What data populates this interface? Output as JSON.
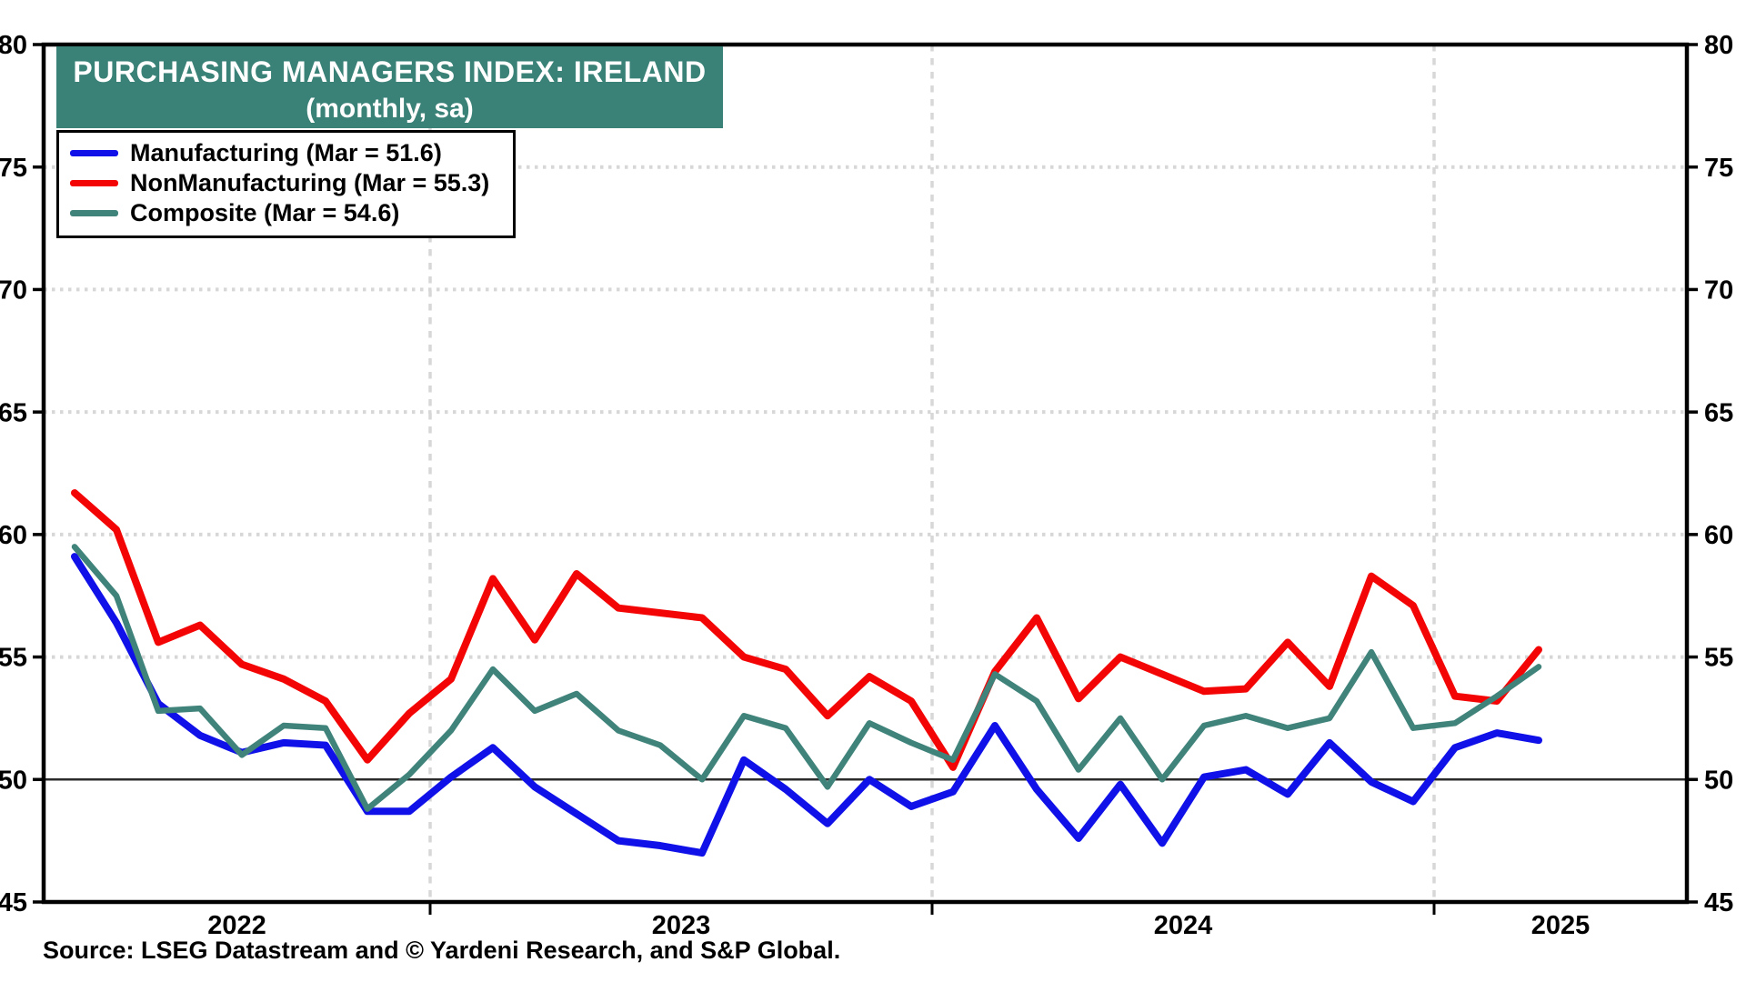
{
  "title": {
    "line1": "PURCHASING MANAGERS INDEX: IRELAND",
    "line2": "(monthly, sa)",
    "box_color": "#3A8177"
  },
  "legend": {
    "items": [
      {
        "label": "Manufacturing (Mar = 51.6)",
        "color": "#1010E8"
      },
      {
        "label": "NonManufacturing (Mar = 55.3)",
        "color": "#F40505"
      },
      {
        "label": "Composite (Mar = 54.6)",
        "color": "#3F837B"
      }
    ]
  },
  "source": "Source: LSEG Datastream and © Yardeni Research, and S&P Global.",
  "chart_data": {
    "type": "line",
    "title": "Purchasing Managers Index: Ireland (monthly, sa)",
    "xlabel": "",
    "ylabel": "",
    "ylim": [
      45,
      80
    ],
    "y_tick_step": 5,
    "y_tick_labels": [
      "45",
      "50",
      "55",
      "60",
      "65",
      "70",
      "75",
      "80"
    ],
    "grid_values_y": [
      55,
      60,
      65,
      70,
      75
    ],
    "reference_line_y": 50,
    "grid": "dotted horizontal at 5-unit steps, dashed vertical at year boundaries",
    "legend_position": "top-left",
    "x": [
      "Apr 2022",
      "May 2022",
      "Jun 2022",
      "Jul 2022",
      "Aug 2022",
      "Sep 2022",
      "Oct 2022",
      "Nov 2022",
      "Dec 2022",
      "Jan 2023",
      "Feb 2023",
      "Mar 2023",
      "Apr 2023",
      "May 2023",
      "Jun 2023",
      "Jul 2023",
      "Aug 2023",
      "Sep 2023",
      "Oct 2023",
      "Nov 2023",
      "Dec 2023",
      "Jan 2024",
      "Feb 2024",
      "Mar 2024",
      "Apr 2024",
      "May 2024",
      "Jun 2024",
      "Jul 2024",
      "Aug 2024",
      "Sep 2024",
      "Oct 2024",
      "Nov 2024",
      "Dec 2024",
      "Jan 2025",
      "Feb 2025",
      "Mar 2025"
    ],
    "year_tick_labels": [
      "2022",
      "2023",
      "2024",
      "2025"
    ],
    "year_boundary_indices": [
      9,
      21,
      33
    ],
    "series": [
      {
        "name": "Manufacturing",
        "color": "#1010E8",
        "width": 8,
        "values": [
          59.1,
          56.4,
          53.1,
          51.8,
          51.1,
          51.5,
          51.4,
          48.7,
          48.7,
          50.1,
          51.3,
          49.7,
          48.6,
          47.5,
          47.3,
          47.0,
          50.8,
          49.6,
          48.2,
          50.0,
          48.9,
          49.5,
          52.2,
          49.6,
          47.6,
          49.8,
          47.4,
          50.1,
          50.4,
          49.4,
          51.5,
          49.9,
          49.1,
          51.3,
          51.9,
          51.6
        ]
      },
      {
        "name": "NonManufacturing",
        "color": "#F40505",
        "width": 8,
        "values": [
          61.7,
          60.2,
          55.6,
          56.3,
          54.7,
          54.1,
          53.2,
          50.8,
          52.7,
          54.1,
          58.2,
          55.7,
          58.4,
          57.0,
          56.8,
          56.6,
          55.0,
          54.5,
          52.6,
          54.2,
          53.2,
          50.5,
          54.4,
          56.6,
          53.3,
          55.0,
          54.3,
          53.6,
          53.7,
          55.6,
          53.8,
          58.3,
          57.1,
          53.4,
          53.2,
          55.3
        ]
      },
      {
        "name": "Composite",
        "color": "#3F837B",
        "width": 6.5,
        "values": [
          59.5,
          57.5,
          52.8,
          52.9,
          51.0,
          52.2,
          52.1,
          48.8,
          50.2,
          52.0,
          54.5,
          52.8,
          53.5,
          52.0,
          51.4,
          50.0,
          52.6,
          52.1,
          49.7,
          52.3,
          51.5,
          50.8,
          54.3,
          53.2,
          50.4,
          52.5,
          50.0,
          52.2,
          52.6,
          52.1,
          52.5,
          55.2,
          52.1,
          52.3,
          53.4,
          54.6
        ]
      }
    ]
  }
}
